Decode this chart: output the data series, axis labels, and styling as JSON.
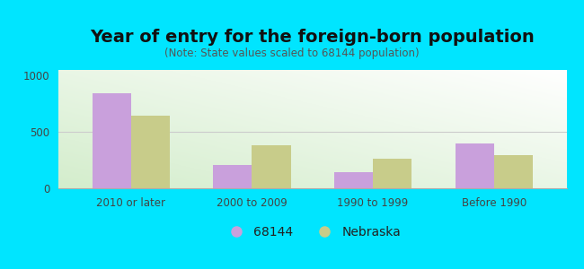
{
  "title": "Year of entry for the foreign-born population",
  "subtitle": "(Note: State values scaled to 68144 population)",
  "categories": [
    "2010 or later",
    "2000 to 2009",
    "1990 to 1999",
    "Before 1990"
  ],
  "values_68144": [
    840,
    210,
    140,
    400
  ],
  "values_nebraska": [
    645,
    380,
    265,
    295
  ],
  "color_68144": "#c9a0dc",
  "color_nebraska": "#c8cc8a",
  "legend_labels": [
    "68144",
    "Nebraska"
  ],
  "legend_marker_68144": "#c9a0dc",
  "legend_marker_nebraska": "#c8cc8a",
  "ylim": [
    0,
    1050
  ],
  "yticks": [
    0,
    500,
    1000
  ],
  "background_outer": "#00e5ff",
  "bar_width": 0.32,
  "title_fontsize": 14,
  "subtitle_fontsize": 8.5,
  "tick_fontsize": 8.5,
  "legend_fontsize": 10
}
